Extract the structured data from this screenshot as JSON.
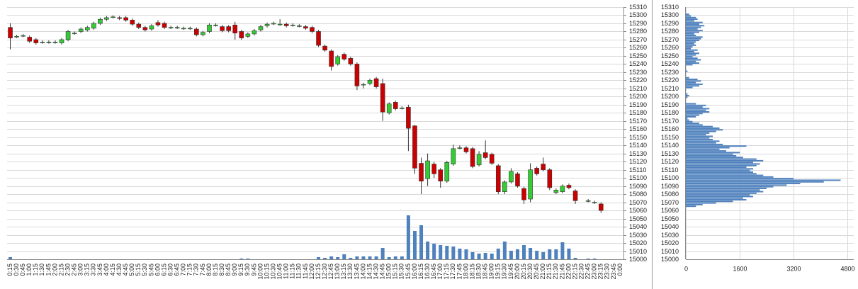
{
  "chart_data": [
    {
      "type": "candlestick",
      "categories": [
        "0:15",
        "0:30",
        "0:45",
        "1:00",
        "1:15",
        "1:30",
        "1:45",
        "2:00",
        "2:15",
        "2:30",
        "2:45",
        "3:00",
        "3:15",
        "3:30",
        "3:45",
        "4:00",
        "4:15",
        "4:30",
        "4:45",
        "5:00",
        "5:15",
        "5:30",
        "5:45",
        "6:00",
        "6:15",
        "6:30",
        "6:45",
        "7:00",
        "7:15",
        "7:30",
        "7:45",
        "8:00",
        "8:15",
        "8:30",
        "8:45",
        "9:00",
        "9:15",
        "9:30",
        "9:45",
        "10:00",
        "10:15",
        "10:30",
        "10:45",
        "11:00",
        "11:15",
        "11:30",
        "11:45",
        "12:00",
        "12:15",
        "12:30",
        "12:45",
        "13:00",
        "13:15",
        "13:30",
        "13:45",
        "14:00",
        "14:15",
        "14:30",
        "14:45",
        "15:00",
        "15:15",
        "15:30",
        "15:45",
        "16:00",
        "16:15",
        "16:30",
        "16:45",
        "17:00",
        "17:15",
        "17:30",
        "17:45",
        "18:00",
        "18:15",
        "18:30",
        "18:45",
        "19:00",
        "19:15",
        "19:30",
        "19:45",
        "20:00",
        "20:15",
        "20:30",
        "20:45",
        "21:00",
        "21:15",
        "21:30",
        "21:45",
        "22:00",
        "22:15",
        "22:30",
        "22:45",
        "23:00",
        "23:15",
        "23:30",
        "23:45",
        "0:00"
      ],
      "open": [
        15285,
        15274,
        15275,
        15273,
        15270,
        15267,
        15267,
        15267,
        15266,
        15270,
        15278,
        15280,
        15282,
        15284,
        15290,
        15295,
        15298,
        15297,
        15297,
        15294,
        15289,
        15285,
        15283,
        15291,
        15290,
        15285,
        15285,
        15284,
        15284,
        15283,
        15276,
        15280,
        15288,
        15286,
        15286,
        15288,
        15280,
        15274,
        15277,
        15282,
        15287,
        15290,
        15289,
        15289,
        15288,
        15287,
        15286,
        15285,
        15280,
        15262,
        15256,
        15240,
        15252,
        15247,
        15240,
        15215,
        15216,
        15222,
        15216,
        15180,
        15193,
        15186,
        15187,
        15164,
        15118,
        15099,
        15117,
        15110,
        15096,
        15117,
        15137,
        15137,
        15136,
        15116,
        15131,
        15129,
        15115,
        15083,
        15095,
        15105,
        15087,
        15074,
        15112,
        15117,
        15110,
        15082,
        15083,
        15091,
        15084,
        null,
        15072,
        15070,
        15068,
        null,
        null,
        null
      ],
      "high": [
        15290,
        15276,
        15277,
        15275,
        15272,
        15269,
        15269,
        15269,
        15272,
        15282,
        15280,
        15285,
        15287,
        15292,
        15297,
        15299,
        15300,
        15299,
        15299,
        15296,
        15291,
        15287,
        15289,
        15294,
        15292,
        15287,
        15287,
        15286,
        15286,
        15285,
        15281,
        15290,
        15290,
        15288,
        15288,
        15292,
        15282,
        15279,
        15283,
        15288,
        15291,
        15292,
        15295,
        15291,
        15290,
        15289,
        15288,
        15287,
        15282,
        15264,
        15258,
        15251,
        15254,
        15249,
        15242,
        15217,
        15222,
        15224,
        15222,
        15193,
        15195,
        15188,
        15190,
        15165,
        15125,
        15130,
        15120,
        15112,
        15121,
        15141,
        15140,
        15139,
        15138,
        15133,
        15146,
        15131,
        15117,
        15097,
        15112,
        15107,
        15089,
        15118,
        15114,
        15125,
        15112,
        15087,
        15092,
        15093,
        15086,
        null,
        15074,
        15072,
        15070,
        null,
        null,
        null
      ],
      "low": [
        15258,
        15272,
        15273,
        15266,
        15264,
        15265,
        15265,
        15265,
        15264,
        15268,
        15276,
        15278,
        15280,
        15282,
        15288,
        15293,
        15296,
        15294,
        15292,
        15287,
        15283,
        15280,
        15281,
        15286,
        15283,
        15283,
        15283,
        15282,
        15282,
        15274,
        15274,
        15278,
        15286,
        15279,
        15279,
        15270,
        15270,
        15272,
        15275,
        15280,
        15285,
        15288,
        15287,
        15285,
        15286,
        15285,
        15282,
        15278,
        15261,
        15255,
        15232,
        15238,
        15244,
        15238,
        15208,
        15210,
        15214,
        15210,
        15170,
        15178,
        15183,
        15184,
        15133,
        15105,
        15080,
        15090,
        15100,
        15088,
        15094,
        15115,
        15135,
        15130,
        15112,
        15114,
        15123,
        15116,
        15080,
        15080,
        15093,
        15088,
        15068,
        15070,
        15103,
        15108,
        15085,
        15080,
        15081,
        15086,
        15068,
        null,
        15070,
        15068,
        15057,
        null,
        null,
        null
      ],
      "close": [
        15272,
        15274,
        15275,
        15268,
        15266,
        15267,
        15267,
        15267,
        15270,
        15280,
        15278,
        15283,
        15285,
        15290,
        15295,
        15297,
        15298,
        15296,
        15294,
        15289,
        15285,
        15282,
        15287,
        15288,
        15285,
        15285,
        15285,
        15284,
        15284,
        15276,
        15279,
        15288,
        15288,
        15281,
        15281,
        15278,
        15272,
        15277,
        15281,
        15286,
        15289,
        15290,
        15289,
        15287,
        15288,
        15287,
        15284,
        15280,
        15263,
        15257,
        15237,
        15249,
        15246,
        15240,
        15213,
        15215,
        15220,
        15212,
        15181,
        15191,
        15185,
        15186,
        15161,
        15112,
        15096,
        15121,
        15105,
        15096,
        15119,
        15136,
        15137,
        15132,
        15114,
        15129,
        15125,
        15118,
        15083,
        15095,
        15108,
        15090,
        15073,
        15110,
        15105,
        15110,
        15088,
        15085,
        15090,
        15088,
        15072,
        null,
        15072,
        15070,
        15060,
        null,
        null,
        null
      ],
      "volume": [
        3,
        0,
        0,
        0,
        0,
        0,
        0,
        0,
        0,
        0,
        0,
        0,
        0,
        0,
        0,
        0,
        0,
        0,
        0,
        0,
        0,
        0,
        0,
        0,
        0,
        0,
        0,
        0,
        0,
        0,
        0,
        0,
        0,
        0,
        0,
        0,
        1,
        1,
        0,
        0,
        0,
        0,
        0,
        0,
        0,
        0,
        0,
        0,
        3,
        2,
        4,
        3,
        7,
        2,
        4,
        4,
        4,
        4,
        16,
        3,
        4,
        4,
        62,
        40,
        48,
        25,
        22,
        20,
        19,
        18,
        15,
        14,
        10,
        8,
        9,
        8,
        15,
        25,
        12,
        14,
        20,
        16,
        12,
        10,
        14,
        14,
        24,
        15,
        2,
        null,
        1,
        1,
        0,
        null,
        null,
        null
      ],
      "up_color": "#33cc33",
      "down_color": "#cc0000",
      "volume_color": "#4f81bd",
      "ylim": [
        15000,
        15310
      ],
      "yticks": [
        15000,
        15010,
        15020,
        15030,
        15040,
        15050,
        15060,
        15070,
        15080,
        15090,
        15100,
        15110,
        15120,
        15130,
        15140,
        15150,
        15160,
        15170,
        15180,
        15190,
        15200,
        15210,
        15220,
        15230,
        15240,
        15250,
        15260,
        15270,
        15280,
        15290,
        15300,
        15310
      ],
      "grid": true
    },
    {
      "type": "profile",
      "y": [
        15064,
        15066,
        15068,
        15070,
        15072,
        15074,
        15076,
        15078,
        15080,
        15082,
        15084,
        15086,
        15088,
        15090,
        15092,
        15094,
        15096,
        15098,
        15100,
        15102,
        15104,
        15106,
        15108,
        15110,
        15112,
        15114,
        15116,
        15118,
        15120,
        15122,
        15124,
        15126,
        15128,
        15130,
        15132,
        15134,
        15136,
        15138,
        15140,
        15142,
        15144,
        15146,
        15148,
        15150,
        15152,
        15154,
        15156,
        15158,
        15160,
        15162,
        15164,
        15166,
        15168,
        15170,
        15172,
        15174,
        15176,
        15178,
        15180,
        15182,
        15184,
        15186,
        15188,
        15190,
        15192,
        15194,
        15196,
        15198,
        15200,
        15202,
        15204,
        15206,
        15208,
        15210,
        15212,
        15214,
        15216,
        15218,
        15220,
        15222,
        15224,
        15226,
        15228,
        15230,
        15232,
        15234,
        15236,
        15238,
        15240,
        15242,
        15244,
        15246,
        15248,
        15250,
        15252,
        15254,
        15256,
        15258,
        15260,
        15262,
        15264,
        15266,
        15268,
        15270,
        15272,
        15274,
        15276,
        15278,
        15280,
        15282,
        15284,
        15286,
        15288,
        15290,
        15292,
        15294,
        15296,
        15298,
        15300
      ],
      "values": [
        300,
        500,
        900,
        1400,
        1800,
        1700,
        2000,
        1900,
        2100,
        2300,
        2200,
        2400,
        2600,
        3000,
        3400,
        4100,
        4600,
        3200,
        2600,
        2300,
        2100,
        2000,
        1900,
        2000,
        1800,
        2100,
        2200,
        2000,
        2300,
        2100,
        1700,
        1500,
        1400,
        1600,
        1200,
        1000,
        1300,
        1800,
        1100,
        900,
        1000,
        800,
        700,
        800,
        600,
        700,
        900,
        1100,
        1000,
        800,
        500,
        400,
        200,
        100,
        50,
        300,
        400,
        500,
        700,
        600,
        700,
        500,
        600,
        300,
        0,
        0,
        0,
        50,
        100,
        50,
        0,
        0,
        0,
        200,
        400,
        500,
        300,
        450,
        350,
        100,
        0,
        0,
        0,
        50,
        0,
        0,
        0,
        200,
        400,
        300,
        450,
        350,
        200,
        300,
        400,
        250,
        350,
        150,
        200,
        300,
        250,
        300,
        400,
        450,
        500,
        300,
        250,
        400,
        500,
        350,
        450,
        550,
        400,
        500,
        250,
        350,
        300,
        150,
        100
      ],
      "color": "#4f81bd",
      "xlim": [
        0,
        4800
      ],
      "xticks": [
        0,
        1600,
        3200,
        4800
      ],
      "ylim": [
        15000,
        15310
      ],
      "yticks": [
        15000,
        15010,
        15020,
        15030,
        15040,
        15050,
        15060,
        15070,
        15080,
        15090,
        15100,
        15110,
        15120,
        15130,
        15140,
        15150,
        15160,
        15170,
        15180,
        15190,
        15200,
        15210,
        15220,
        15230,
        15240,
        15250,
        15260,
        15270,
        15280,
        15290,
        15300,
        15310
      ],
      "grid": true
    }
  ]
}
